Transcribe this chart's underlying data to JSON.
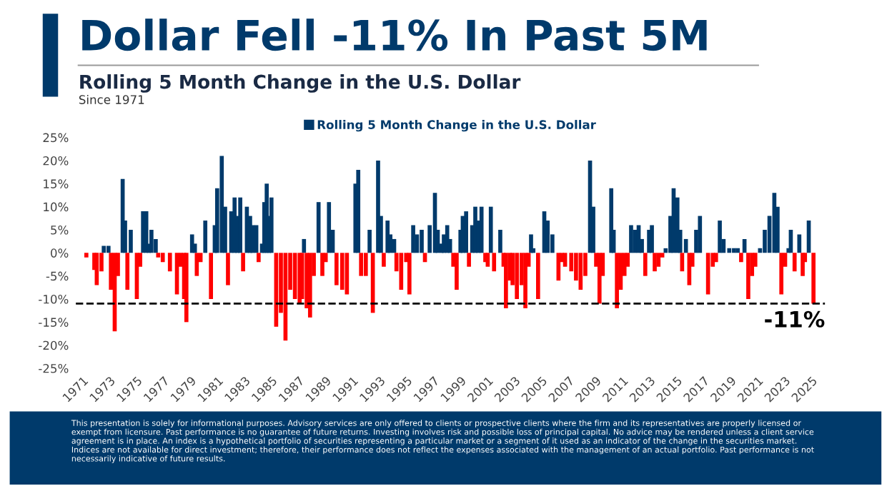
{
  "chart_data": {
    "type": "bar",
    "title": "Dollar Fell -11% In Past 5M",
    "subtitle": "Rolling 5 Month Change in the U.S. Dollar",
    "annotations": [
      "Since 1971",
      "This presentation is solely for informational purposes. Advisory services are only offered to clients or prospective clients where the firm and its representatives are properly licensed or exempt from licensure. Past performance is no guarantee of future returns. Investing involves risk and possible loss of principal capital. No advice may be rendered unless a client service agreement is in place. An index is a hypothetical portfolio of securities representing a particular market or a segment of it used as an indicator of the change in the securities market. Indices are not available for direct investment; therefore, their performance does not reflect the expenses associated with the management of an actual portfolio. Past performance is not necessarily indicative of future results."
    ],
    "series": [
      {
        "name": "Rolling 5 Month Change in the U.S. Dollar",
        "color": "#003a6b",
        "x": [
          1972.57,
          1972.92,
          1973.97,
          1974.15,
          1974.57,
          1974.78,
          1975.48,
          1975.72,
          1975.9,
          1976.1,
          1976.42,
          1978.97,
          1979.11,
          1979.32,
          1980.09,
          1980.27,
          1980.79,
          1980.97,
          1981.31,
          1981.56,
          1982.01,
          1982.26,
          1982.47,
          1982.68,
          1983.17,
          1983.41,
          1983.59,
          1983.87,
          1984.29,
          1984.46,
          1984.64,
          1984.81,
          1984.99,
          1985.16,
          1987.4,
          1988.48,
          1989.25,
          1989.53,
          1990.93,
          1991.21,
          1991.42,
          1992.26,
          1992.68,
          1992.89,
          1993.1,
          1993.59,
          1993.8,
          1994.08,
          1995.49,
          1995.77,
          1996.12,
          1996.71,
          1997.1,
          1997.31,
          1997.59,
          1997.76,
          1998.01,
          1998.22,
          1998.99,
          1999.16,
          1999.41,
          1999.86,
          2000.09,
          2000.31,
          2000.55,
          2001.24,
          2001.69,
          2001.94,
          2004.22,
          2004.39,
          2004.99,
          2005.2,
          2005.45,
          2005.8,
          2005.97,
          2008.59,
          2008.83,
          2009.74,
          2010.16,
          2010.34,
          2011.63,
          2011.91,
          2012.19,
          2012.43,
          2012.96,
          2013.17,
          2014.19,
          2014.54,
          2014.78,
          2015.06,
          2015.27,
          2015.69,
          2016.45,
          2016.73,
          2016.98,
          2018.2,
          2018.48,
          2018.9,
          2019.25,
          2019.53,
          2020.03,
          2021.18,
          2021.53,
          2021.88,
          2022.24,
          2022.48,
          2023.29,
          2023.46,
          2024.09,
          2024.79,
          2024.93
        ],
        "values": [
          1.5,
          1.5,
          16,
          7,
          5,
          0,
          9,
          9,
          2,
          5,
          3,
          0,
          4,
          2,
          7,
          0,
          6,
          14,
          21,
          10,
          9,
          12,
          8,
          12,
          10,
          8,
          6,
          6,
          2,
          11,
          15,
          8,
          12,
          0,
          3,
          11,
          11,
          5,
          0,
          15,
          18,
          5,
          0,
          20,
          8,
          7,
          4,
          3,
          6,
          4,
          5,
          6,
          13,
          5,
          2,
          4,
          6,
          3,
          5,
          8,
          9,
          6,
          10,
          7,
          10,
          10,
          0,
          5,
          4,
          1,
          0,
          9,
          7,
          4,
          0,
          20,
          10,
          0,
          14,
          5,
          6,
          5,
          6,
          3,
          5,
          6,
          1,
          8,
          14,
          12,
          5,
          3,
          5,
          8,
          0,
          7,
          3,
          1,
          1,
          1,
          3,
          1,
          5,
          8,
          13,
          10,
          1,
          5,
          4,
          7,
          0
        ]
      },
      {
        "color": "#ff0000",
        "x": [
          1971.28,
          1971.87,
          1972.05,
          1972.4,
          1973.1,
          1973.38,
          1973.62,
          1974.32,
          1975.02,
          1975.27,
          1976.6,
          1976.94,
          1977.47,
          1977.99,
          1978.27,
          1978.52,
          1978.69,
          1979.46,
          1979.74,
          1980.51,
          1981.77,
          1982.89,
          1984.04,
          1985.34,
          1985.69,
          1986.03,
          1986.38,
          1986.73,
          1987.08,
          1987.26,
          1987.6,
          1987.85,
          1988.13,
          1988.76,
          1989.01,
          1989.81,
          1990.23,
          1990.58,
          1991.63,
          1991.98,
          1992.5,
          1993.31,
          1994.25,
          1994.6,
          1994.97,
          1995.21,
          1996.36,
          1998.46,
          1998.71,
          1999.62,
          2000.83,
          2001.01,
          2001.48,
          2002.18,
          2002.36,
          2002.64,
          2002.85,
          2003.17,
          2003.52,
          2003.8,
          2004.04,
          2004.74,
          2006.25,
          2006.5,
          2006.74,
          2007.2,
          2007.55,
          2007.89,
          2008.24,
          2009.04,
          2009.29,
          2009.53,
          2010.58,
          2010.86,
          2011.14,
          2011.38,
          2012.68,
          2013.38,
          2013.66,
          2013.94,
          2015.41,
          2015.94,
          2016.17,
          2017.33,
          2017.68,
          2017.92,
          2019.78,
          2020.31,
          2020.59,
          2020.83,
          2022.76,
          2023.04,
          2023.74,
          2024.34,
          2024.51,
          2025.14
        ],
        "values": [
          -1,
          -3.7,
          -7,
          -4,
          -8,
          -17,
          -5,
          -8,
          -10,
          -3,
          -1,
          -2,
          -4,
          -9,
          -3,
          -10,
          -15,
          -5,
          -2,
          -10,
          -7,
          -4,
          -2,
          -16,
          -13,
          -19,
          -8,
          -10,
          -11,
          -10,
          -12,
          -14,
          -5,
          -5,
          -2,
          -7,
          -8,
          -9,
          -5,
          -5,
          -13,
          -3,
          -4,
          -8,
          -2,
          -9,
          -2,
          -3,
          -8,
          -3,
          -2,
          -3,
          -4,
          -3,
          -12,
          -6,
          -7,
          -10,
          -7,
          -12,
          -3,
          -10,
          -6,
          -2,
          -3,
          -4,
          -6,
          -8,
          -5,
          -3,
          -11,
          -5,
          -12,
          -8,
          -5,
          -3,
          -5,
          -4,
          -3,
          -1,
          -4,
          -7,
          -3,
          -9,
          -3,
          -2,
          -2,
          -10,
          -5,
          -3,
          -9,
          -3,
          -4,
          -5,
          -2,
          -11
        ]
      }
    ],
    "xlim": [
      1970.5,
      2026
    ],
    "xticks": [
      1971,
      1973,
      1975,
      1977,
      1979,
      1981,
      1983,
      1985,
      1987,
      1989,
      1991,
      1993,
      1995,
      1997,
      1999,
      2001,
      2003,
      2005,
      2007,
      2009,
      2011,
      2013,
      2015,
      2017,
      2019,
      2021,
      2023,
      2025
    ],
    "ylim": [
      -25,
      25
    ],
    "yticks": [
      {
        "value": -25,
        "label": "-25%"
      },
      {
        "value": -20,
        "label": "-20%"
      },
      {
        "value": -15,
        "label": "-15%"
      },
      {
        "value": -10,
        "label": "-10%"
      },
      {
        "value": -5,
        "label": "-5%"
      },
      {
        "value": 0,
        "label": "0%"
      },
      {
        "value": 5,
        "label": "5%"
      },
      {
        "value": 10,
        "label": "10%"
      },
      {
        "value": 15,
        "label": "15%"
      },
      {
        "value": 20,
        "label": "20%"
      },
      {
        "value": 25,
        "label": "25%"
      }
    ],
    "ref_lines": [
      {
        "axis": "y",
        "value": -11,
        "label": "-11%",
        "color": "#000000",
        "line_style": "dashed"
      }
    ],
    "legend": "top",
    "grid": false
  }
}
